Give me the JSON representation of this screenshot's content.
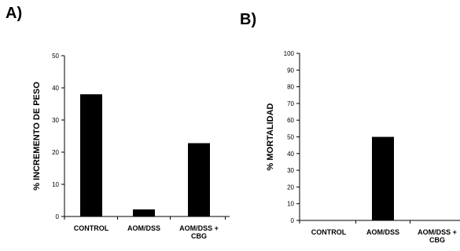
{
  "panels": {
    "a": {
      "label": "A)"
    },
    "b": {
      "label": "B)"
    }
  },
  "chart_data": [
    {
      "type": "bar",
      "categories": [
        "CONTROL",
        "AOM/DSS",
        "AOM/DSS + CBG"
      ],
      "values": [
        38,
        2.2,
        22.8
      ],
      "ylabel": "% INCREMENTO DE PESO",
      "ylim": [
        0,
        50
      ],
      "yticks": [
        0,
        10,
        20,
        30,
        40,
        50
      ],
      "color": "#000000",
      "grid": false
    },
    {
      "type": "bar",
      "categories": [
        "CONTROL",
        "AOM/DSS",
        "AOM/DSS + CBG"
      ],
      "values": [
        0,
        50,
        0
      ],
      "ylabel": "% MORTALIDAD",
      "ylim": [
        0,
        100
      ],
      "yticks": [
        0,
        10,
        20,
        30,
        40,
        50,
        60,
        70,
        80,
        90,
        100
      ],
      "color": "#000000",
      "grid": false
    }
  ]
}
